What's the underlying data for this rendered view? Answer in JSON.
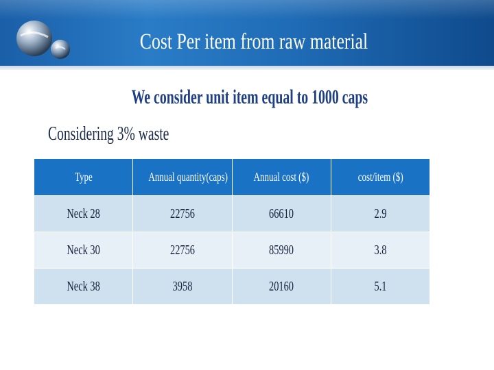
{
  "slide": {
    "title": "Cost Per item from raw material",
    "subtitle": "We consider unit item  equal to 1000 caps",
    "note": "Considering 3% waste"
  },
  "colors": {
    "header_blue": "#1a72c4",
    "subtitle_navy": "#1f3f84",
    "row_odd": "#cfe0ef",
    "row_even": "#e8f0f7"
  },
  "table": {
    "headers": [
      "Type",
      "Annual quantity(caps)",
      "Annual cost ($)",
      "cost/item  ($)"
    ],
    "rows": [
      [
        "Neck 28",
        "22756",
        "66610",
        "2.9"
      ],
      [
        "Neck 30",
        "22756",
        "85990",
        "3.8"
      ],
      [
        "Neck 38",
        "3958",
        "20160",
        "5.1"
      ]
    ]
  }
}
